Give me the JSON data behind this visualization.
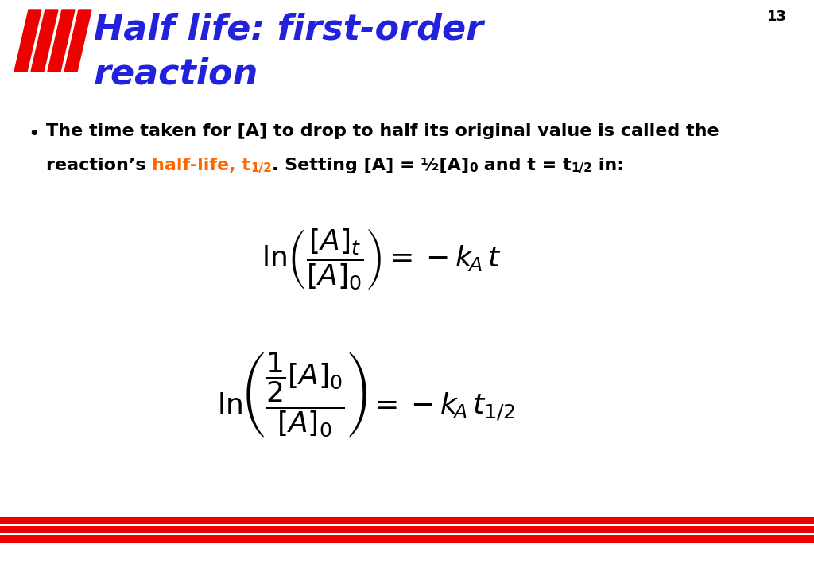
{
  "title_line1": "Half life: first-order",
  "title_line2": "reaction",
  "title_color": "#2222DD",
  "slide_number": "13",
  "bullet_line1": "The time taken for [A] to drop to half its original value is called the",
  "highlight_color": "#FF6600",
  "text_color": "#000000",
  "background_color": "#FFFFFF",
  "red_color": "#EE0000",
  "eq1": "$\\ln\\left(\\dfrac{[A]_t}{[A]_0}\\right) = -k_A t$",
  "eq2": "$\\ln\\left(\\dfrac{\\dfrac{1}{2}[A]_0}{[A]_0}\\right) = -k_A t_{1/2}$",
  "title_fontsize": 32,
  "body_fontsize": 16,
  "eq_fontsize": 26,
  "slide_num_fontsize": 13
}
